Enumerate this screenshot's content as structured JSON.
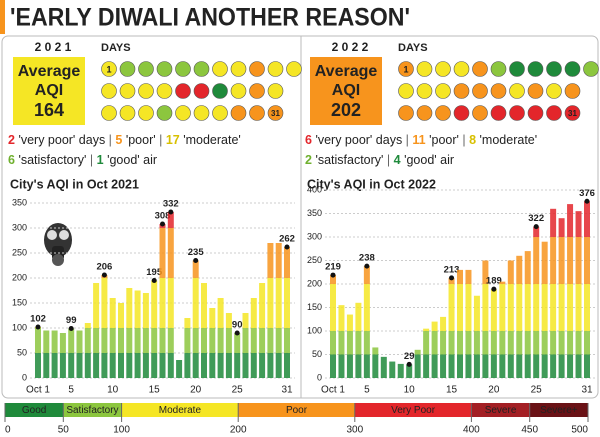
{
  "title": "'EARLY DIWALI ANOTHER REASON'",
  "scale": {
    "labels": [
      "Good",
      "Satisfactory",
      "Moderate",
      "Poor",
      "Very Poor",
      "Severe",
      "Severe+"
    ],
    "colors": [
      "#1f8a3b",
      "#8cc63e",
      "#f5e625",
      "#f7941d",
      "#e3262b",
      "#a31f24",
      "#6a1216"
    ],
    "ticks": [
      0,
      50,
      100,
      200,
      300,
      400,
      450,
      500
    ]
  },
  "panels": [
    {
      "year": "2 0 2 1",
      "avg_label": "Average",
      "avg_unit": "AQI",
      "avg": 164,
      "box_color": "#f5e625",
      "days_label": "DAYS",
      "first_day": "1",
      "last_day": "31",
      "counts": [
        [
          {
            "count": 2,
            "text": "'very poor' days",
            "color": "#e3262b"
          },
          {
            "count": 5,
            "text": "'poor'",
            "color": "#f7941d"
          },
          {
            "count": 17,
            "text": "'moderate'",
            "color": "#d8c000"
          }
        ],
        [
          {
            "count": 6,
            "text": "'satisfactory'",
            "color": "#6fb02e"
          },
          {
            "count": 1,
            "text": "'good' air",
            "color": "#1f8a3b"
          }
        ]
      ]
    },
    {
      "year": "2 0 2 2",
      "avg_label": "Average",
      "avg_unit": "AQI",
      "avg": 202,
      "box_color": "#f7941d",
      "days_label": "DAYS",
      "first_day": "1",
      "last_day": "31",
      "counts": [
        [
          {
            "count": 6,
            "text": "'very poor' days",
            "color": "#e3262b"
          },
          {
            "count": 11,
            "text": "'poor'",
            "color": "#f7941d"
          },
          {
            "count": 8,
            "text": "'moderate'",
            "color": "#d8c000"
          }
        ],
        [
          {
            "count": 2,
            "text": "'satisfactory'",
            "color": "#6fb02e"
          },
          {
            "count": 4,
            "text": "'good' air",
            "color": "#1f8a3b"
          }
        ]
      ]
    }
  ],
  "chart_data": [
    {
      "type": "bar",
      "title": "City's AQI in Oct 2021",
      "categories": [
        "Oct 1",
        null,
        null,
        null,
        "5",
        null,
        null,
        null,
        null,
        "10",
        null,
        null,
        null,
        null,
        "15",
        null,
        null,
        null,
        null,
        "20",
        null,
        null,
        null,
        null,
        "25",
        null,
        null,
        null,
        null,
        null,
        "31"
      ],
      "values": [
        102,
        95,
        95,
        90,
        99,
        95,
        110,
        190,
        206,
        160,
        150,
        180,
        175,
        170,
        195,
        308,
        332,
        36,
        120,
        235,
        190,
        140,
        160,
        130,
        90,
        130,
        160,
        190,
        270,
        270,
        262
      ],
      "value_labels": [
        "102",
        null,
        null,
        null,
        "99",
        null,
        null,
        null,
        "206",
        null,
        null,
        null,
        null,
        null,
        "195",
        "308",
        "332",
        null,
        null,
        "235",
        null,
        null,
        null,
        null,
        "90",
        null,
        null,
        null,
        null,
        null,
        "262"
      ],
      "ylim": [
        0,
        350
      ],
      "yticks": [
        0,
        50,
        100,
        150,
        200,
        250,
        300,
        350
      ],
      "grid": true
    },
    {
      "type": "bar",
      "title": "City's AQI in Oct 2022",
      "categories": [
        "Oct 1",
        null,
        null,
        null,
        "5",
        null,
        null,
        null,
        null,
        "10",
        null,
        null,
        null,
        null,
        "15",
        null,
        null,
        null,
        null,
        "20",
        null,
        null,
        null,
        null,
        "25",
        null,
        null,
        null,
        null,
        null,
        "31"
      ],
      "values": [
        219,
        155,
        135,
        160,
        238,
        65,
        45,
        35,
        30,
        29,
        60,
        105,
        120,
        130,
        213,
        230,
        230,
        175,
        250,
        189,
        205,
        250,
        260,
        270,
        322,
        290,
        360,
        340,
        370,
        355,
        376
      ],
      "value_labels": [
        "219",
        null,
        null,
        null,
        "238",
        null,
        null,
        null,
        null,
        "29",
        null,
        null,
        null,
        null,
        "213",
        null,
        null,
        null,
        null,
        "189",
        null,
        null,
        null,
        null,
        "322",
        null,
        null,
        null,
        null,
        null,
        "376"
      ],
      "ylim": [
        0,
        400
      ],
      "yticks": [
        0,
        50,
        100,
        150,
        200,
        250,
        300,
        350,
        400
      ],
      "grid": true
    }
  ]
}
